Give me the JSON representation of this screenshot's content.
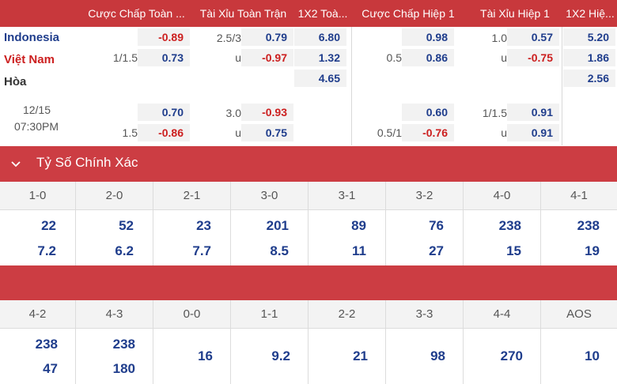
{
  "header": {
    "col1": "Cược Chấp Toàn ...",
    "col2": "Tài Xỉu Toàn Trận",
    "col3": "1X2 Toà...",
    "col4": "Cược Chấp Hiệp 1",
    "col5": "Tài Xỉu Hiệp 1",
    "col6": "1X2 Hiệ..."
  },
  "match": {
    "home": "Indonesia",
    "away": "Việt Nam",
    "draw": "Hòa",
    "date": "12/15",
    "time": "07:30PM"
  },
  "main_odds": {
    "ft_handicap": {
      "line": "1/1.5",
      "home": "-0.89",
      "away": "0.73"
    },
    "ft_ou": {
      "line": "2.5/3",
      "unit": "u",
      "over": "0.79",
      "under": "-0.97"
    },
    "ft_1x2": {
      "home": "6.80",
      "away": "1.32",
      "draw": "4.65"
    },
    "h1_handicap": {
      "line": "0.5",
      "home": "0.98",
      "away": "0.86"
    },
    "h1_ou": {
      "line": "1.0",
      "unit": "u",
      "over": "0.57",
      "under": "-0.75"
    },
    "h1_1x2": {
      "home": "5.20",
      "away": "1.86",
      "draw": "2.56"
    }
  },
  "alt_odds": {
    "ft_handicap": {
      "line": "1.5",
      "home": "0.70",
      "away": "-0.86"
    },
    "ft_ou": {
      "line": "3.0",
      "unit": "u",
      "over": "-0.93",
      "under": "0.75"
    },
    "h1_handicap": {
      "line": "0.5/1",
      "home": "0.60",
      "away": "-0.76"
    },
    "h1_ou": {
      "line": "1/1.5",
      "unit": "u",
      "over": "0.91",
      "under": "0.91"
    }
  },
  "correct_score": {
    "title": "Tỷ Số Chính Xác",
    "row1": [
      {
        "score": "1-0",
        "ft": "22",
        "h1": "7.2"
      },
      {
        "score": "2-0",
        "ft": "52",
        "h1": "6.2"
      },
      {
        "score": "2-1",
        "ft": "23",
        "h1": "7.7"
      },
      {
        "score": "3-0",
        "ft": "201",
        "h1": "8.5"
      },
      {
        "score": "3-1",
        "ft": "89",
        "h1": "11"
      },
      {
        "score": "3-2",
        "ft": "76",
        "h1": "27"
      },
      {
        "score": "4-0",
        "ft": "238",
        "h1": "15"
      },
      {
        "score": "4-1",
        "ft": "238",
        "h1": "19"
      }
    ],
    "row2": [
      {
        "score": "4-2",
        "ft": "238",
        "h1": "47"
      },
      {
        "score": "4-3",
        "ft": "238",
        "h1": "180"
      },
      {
        "score": "0-0",
        "single": "16"
      },
      {
        "score": "1-1",
        "single": "9.2"
      },
      {
        "score": "2-2",
        "single": "21"
      },
      {
        "score": "3-3",
        "single": "98"
      },
      {
        "score": "4-4",
        "single": "270"
      },
      {
        "score": "AOS",
        "single": "10"
      }
    ]
  },
  "colors": {
    "accent_red": "#c8383c",
    "odds_blue": "#1f3d8c",
    "odds_red": "#cc1f1f"
  }
}
